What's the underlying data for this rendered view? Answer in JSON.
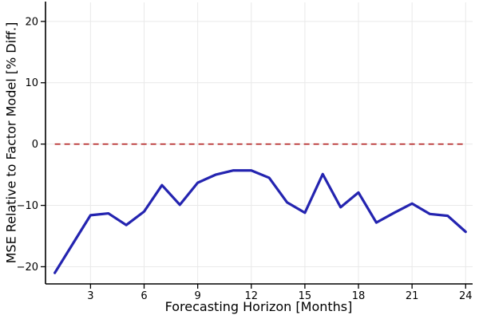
{
  "chart_data": {
    "type": "line",
    "title": "",
    "xlabel": "Forecasting Horizon [Months]",
    "ylabel": "MSE Relative to Factor Model [% Diff.]",
    "x": [
      1,
      2,
      3,
      4,
      5,
      6,
      7,
      8,
      9,
      10,
      11,
      12,
      13,
      14,
      15,
      16,
      17,
      18,
      19,
      20,
      21,
      22,
      23,
      24
    ],
    "series": [
      {
        "name": "mse-relative-to-factor-model",
        "color": "#2424b0",
        "line_width": 3.2,
        "values": [
          -21.0,
          -16.3,
          -11.6,
          -11.3,
          -13.2,
          -11.0,
          -6.7,
          -9.9,
          -6.3,
          -5.0,
          -4.3,
          -4.3,
          -5.5,
          -9.5,
          -11.2,
          -4.9,
          -10.3,
          -7.9,
          -12.8,
          -11.2,
          -9.7,
          -11.4,
          -11.7,
          -14.3
        ]
      }
    ],
    "zero_line": {
      "y": 0,
      "color": "#b22222",
      "style": "dashed"
    },
    "x_ticks": [
      3,
      6,
      9,
      12,
      15,
      18,
      21,
      24
    ],
    "y_ticks": [
      -20,
      -10,
      0,
      10,
      20
    ],
    "xlim": [
      0.48,
      24.39
    ],
    "ylim": [
      -22.8,
      23.1
    ],
    "grid": true,
    "legend": "none",
    "background": "#ffffff",
    "grid_color": "#e9e9e9",
    "axis_color": "#000000",
    "tick_label_color": "#000000"
  }
}
